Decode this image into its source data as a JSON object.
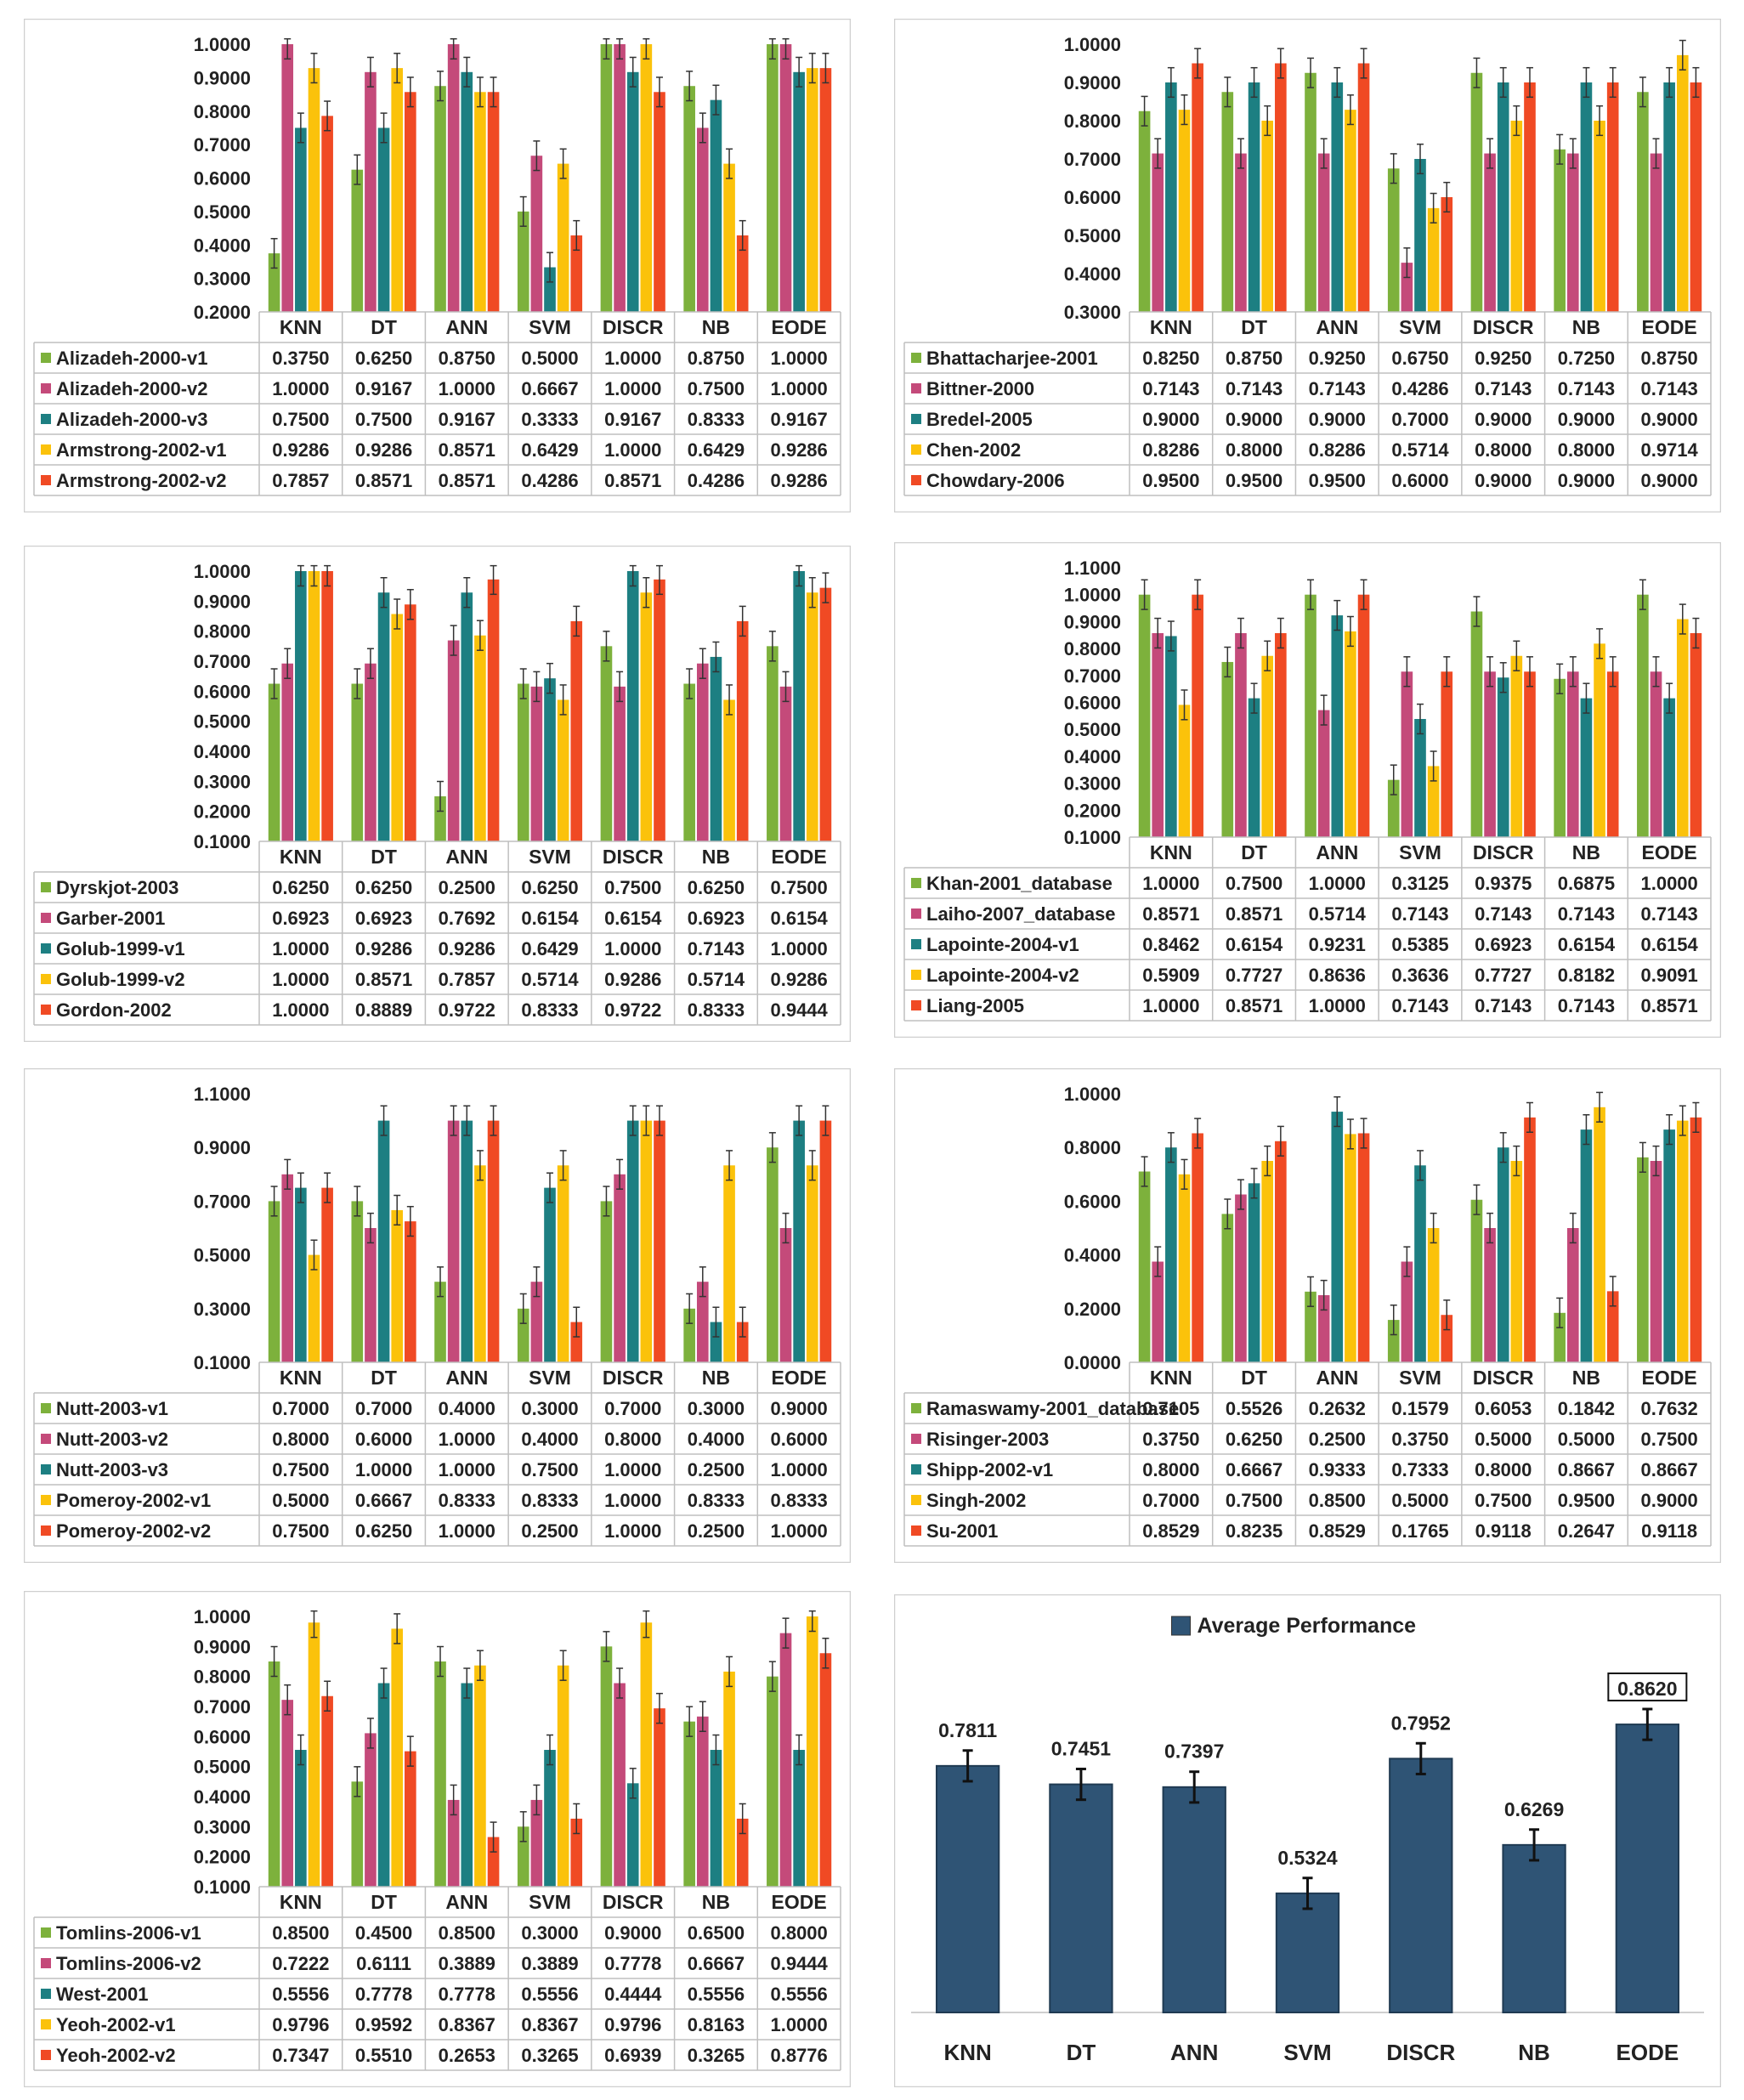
{
  "methods": [
    "KNN",
    "DT",
    "ANN",
    "SVM",
    "DISCR",
    "NB",
    "EODE"
  ],
  "series_colors": [
    "#7DB13C",
    "#C44A7A",
    "#1D7F82",
    "#FBC20B",
    "#F04A24"
  ],
  "avg_color": "#2F5475",
  "chart_data": [
    {
      "type": "bar",
      "categories": [
        "KNN",
        "DT",
        "ANN",
        "SVM",
        "DISCR",
        "NB",
        "EODE"
      ],
      "ylim": [
        0.2,
        1.0
      ],
      "y_ticks": [
        1.0,
        0.9,
        0.8,
        0.7,
        0.6,
        0.5,
        0.4,
        0.3,
        0.2
      ],
      "error_bars": true,
      "grid": false,
      "legend": "table",
      "series": [
        {
          "name": "Alizadeh-2000-v1",
          "values": [
            0.375,
            0.625,
            0.875,
            0.5,
            1.0,
            0.875,
            1.0
          ]
        },
        {
          "name": "Alizadeh-2000-v2",
          "values": [
            1.0,
            0.9167,
            1.0,
            0.6667,
            1.0,
            0.75,
            1.0
          ]
        },
        {
          "name": "Alizadeh-2000-v3",
          "values": [
            0.75,
            0.75,
            0.9167,
            0.3333,
            0.9167,
            0.8333,
            0.9167
          ]
        },
        {
          "name": "Armstrong-2002-v1",
          "values": [
            0.9286,
            0.9286,
            0.8571,
            0.6429,
            1.0,
            0.6429,
            0.9286
          ]
        },
        {
          "name": "Armstrong-2002-v2",
          "values": [
            0.7857,
            0.8571,
            0.8571,
            0.4286,
            0.8571,
            0.4286,
            0.9286
          ]
        }
      ]
    },
    {
      "type": "bar",
      "categories": [
        "KNN",
        "DT",
        "ANN",
        "SVM",
        "DISCR",
        "NB",
        "EODE"
      ],
      "ylim": [
        0.3,
        1.0
      ],
      "y_ticks": [
        1.0,
        0.9,
        0.8,
        0.7,
        0.6,
        0.5,
        0.4,
        0.3
      ],
      "error_bars": true,
      "grid": false,
      "legend": "table",
      "series": [
        {
          "name": "Bhattacharjee-2001",
          "values": [
            0.825,
            0.875,
            0.925,
            0.675,
            0.925,
            0.725,
            0.875
          ]
        },
        {
          "name": "Bittner-2000",
          "values": [
            0.7143,
            0.7143,
            0.7143,
            0.4286,
            0.7143,
            0.7143,
            0.7143
          ]
        },
        {
          "name": "Bredel-2005",
          "values": [
            0.9,
            0.9,
            0.9,
            0.7,
            0.9,
            0.9,
            0.9
          ]
        },
        {
          "name": "Chen-2002",
          "values": [
            0.8286,
            0.8,
            0.8286,
            0.5714,
            0.8,
            0.8,
            0.9714
          ]
        },
        {
          "name": "Chowdary-2006",
          "values": [
            0.95,
            0.95,
            0.95,
            0.6,
            0.9,
            0.9,
            0.9
          ]
        }
      ]
    },
    {
      "type": "bar",
      "categories": [
        "KNN",
        "DT",
        "ANN",
        "SVM",
        "DISCR",
        "NB",
        "EODE"
      ],
      "ylim": [
        0.1,
        1.0
      ],
      "y_ticks": [
        1.0,
        0.9,
        0.8,
        0.7,
        0.6,
        0.5,
        0.4,
        0.3,
        0.2,
        0.1
      ],
      "error_bars": true,
      "grid": false,
      "legend": "table",
      "series": [
        {
          "name": "Dyrskjot-2003",
          "values": [
            0.625,
            0.625,
            0.25,
            0.625,
            0.75,
            0.625,
            0.75
          ]
        },
        {
          "name": "Garber-2001",
          "values": [
            0.6923,
            0.6923,
            0.7692,
            0.6154,
            0.6154,
            0.6923,
            0.6154
          ]
        },
        {
          "name": "Golub-1999-v1",
          "values": [
            1.0,
            0.9286,
            0.9286,
            0.6429,
            1.0,
            0.7143,
            1.0
          ]
        },
        {
          "name": "Golub-1999-v2",
          "values": [
            1.0,
            0.8571,
            0.7857,
            0.5714,
            0.9286,
            0.5714,
            0.9286
          ]
        },
        {
          "name": "Gordon-2002",
          "values": [
            1.0,
            0.8889,
            0.9722,
            0.8333,
            0.9722,
            0.8333,
            0.9444
          ]
        }
      ]
    },
    {
      "type": "bar",
      "categories": [
        "KNN",
        "DT",
        "ANN",
        "SVM",
        "DISCR",
        "NB",
        "EODE"
      ],
      "ylim": [
        0.1,
        1.1
      ],
      "y_ticks": [
        1.1,
        1.0,
        0.9,
        0.8,
        0.7,
        0.6,
        0.5,
        0.4,
        0.3,
        0.2,
        0.1
      ],
      "error_bars": true,
      "grid": false,
      "legend": "table",
      "series": [
        {
          "name": "Khan-2001_database",
          "values": [
            1.0,
            0.75,
            1.0,
            0.3125,
            0.9375,
            0.6875,
            1.0
          ]
        },
        {
          "name": "Laiho-2007_database",
          "values": [
            0.8571,
            0.8571,
            0.5714,
            0.7143,
            0.7143,
            0.7143,
            0.7143
          ]
        },
        {
          "name": "Lapointe-2004-v1",
          "values": [
            0.8462,
            0.6154,
            0.9231,
            0.5385,
            0.6923,
            0.6154,
            0.6154
          ]
        },
        {
          "name": "Lapointe-2004-v2",
          "values": [
            0.5909,
            0.7727,
            0.8636,
            0.3636,
            0.7727,
            0.8182,
            0.9091
          ]
        },
        {
          "name": "Liang-2005",
          "values": [
            1.0,
            0.8571,
            1.0,
            0.7143,
            0.7143,
            0.7143,
            0.8571
          ]
        }
      ]
    },
    {
      "type": "bar",
      "categories": [
        "KNN",
        "DT",
        "ANN",
        "SVM",
        "DISCR",
        "NB",
        "EODE"
      ],
      "ylim": [
        0.1,
        1.1
      ],
      "y_ticks": [
        1.1,
        0.9,
        0.7,
        0.5,
        0.3,
        0.1
      ],
      "error_bars": true,
      "grid": false,
      "legend": "table",
      "series": [
        {
          "name": "Nutt-2003-v1",
          "values": [
            0.7,
            0.7,
            0.4,
            0.3,
            0.7,
            0.3,
            0.9
          ]
        },
        {
          "name": "Nutt-2003-v2",
          "values": [
            0.8,
            0.6,
            1.0,
            0.4,
            0.8,
            0.4,
            0.6
          ]
        },
        {
          "name": "Nutt-2003-v3",
          "values": [
            0.75,
            1.0,
            1.0,
            0.75,
            1.0,
            0.25,
            1.0
          ]
        },
        {
          "name": "Pomeroy-2002-v1",
          "values": [
            0.5,
            0.6667,
            0.8333,
            0.8333,
            1.0,
            0.8333,
            0.8333
          ]
        },
        {
          "name": "Pomeroy-2002-v2",
          "values": [
            0.75,
            0.625,
            1.0,
            0.25,
            1.0,
            0.25,
            1.0
          ]
        }
      ]
    },
    {
      "type": "bar",
      "categories": [
        "KNN",
        "DT",
        "ANN",
        "SVM",
        "DISCR",
        "NB",
        "EODE"
      ],
      "ylim": [
        0.0,
        1.0
      ],
      "y_ticks": [
        1.0,
        0.8,
        0.6,
        0.4,
        0.2,
        0.0
      ],
      "error_bars": true,
      "grid": false,
      "legend": "table",
      "series": [
        {
          "name": "Ramaswamy-2001_database",
          "values": [
            0.7105,
            0.5526,
            0.2632,
            0.1579,
            0.6053,
            0.1842,
            0.7632
          ]
        },
        {
          "name": "Risinger-2003",
          "values": [
            0.375,
            0.625,
            0.25,
            0.375,
            0.5,
            0.5,
            0.75
          ]
        },
        {
          "name": "Shipp-2002-v1",
          "values": [
            0.8,
            0.6667,
            0.9333,
            0.7333,
            0.8,
            0.8667,
            0.8667
          ]
        },
        {
          "name": "Singh-2002",
          "values": [
            0.7,
            0.75,
            0.85,
            0.5,
            0.75,
            0.95,
            0.9
          ]
        },
        {
          "name": "Su-2001",
          "values": [
            0.8529,
            0.8235,
            0.8529,
            0.1765,
            0.9118,
            0.2647,
            0.9118
          ]
        }
      ]
    },
    {
      "type": "bar",
      "categories": [
        "KNN",
        "DT",
        "ANN",
        "SVM",
        "DISCR",
        "NB",
        "EODE"
      ],
      "ylim": [
        0.1,
        1.0
      ],
      "y_ticks": [
        1.0,
        0.9,
        0.8,
        0.7,
        0.6,
        0.5,
        0.4,
        0.3,
        0.2,
        0.1
      ],
      "error_bars": true,
      "grid": false,
      "legend": "table",
      "series": [
        {
          "name": "Tomlins-2006-v1",
          "values": [
            0.85,
            0.45,
            0.85,
            0.3,
            0.9,
            0.65,
            0.8
          ]
        },
        {
          "name": "Tomlins-2006-v2",
          "values": [
            0.7222,
            0.6111,
            0.3889,
            0.3889,
            0.7778,
            0.6667,
            0.9444
          ]
        },
        {
          "name": "West-2001",
          "values": [
            0.5556,
            0.7778,
            0.7778,
            0.5556,
            0.4444,
            0.5556,
            0.5556
          ]
        },
        {
          "name": "Yeoh-2002-v1",
          "values": [
            0.9796,
            0.9592,
            0.8367,
            0.8367,
            0.9796,
            0.8163,
            1.0
          ]
        },
        {
          "name": "Yeoh-2002-v2",
          "values": [
            0.7347,
            0.551,
            0.2653,
            0.3265,
            0.6939,
            0.3265,
            0.8776
          ]
        }
      ]
    },
    {
      "type": "bar",
      "title": "Average Performance",
      "categories": [
        "KNN",
        "DT",
        "ANN",
        "SVM",
        "DISCR",
        "NB",
        "EODE"
      ],
      "error_bars": true,
      "grid": false,
      "legend": "top",
      "highlight": "EODE",
      "series": [
        {
          "name": "Average Performance",
          "values": [
            0.7811,
            0.7451,
            0.7397,
            0.5324,
            0.7952,
            0.6269,
            0.862
          ]
        }
      ]
    }
  ]
}
